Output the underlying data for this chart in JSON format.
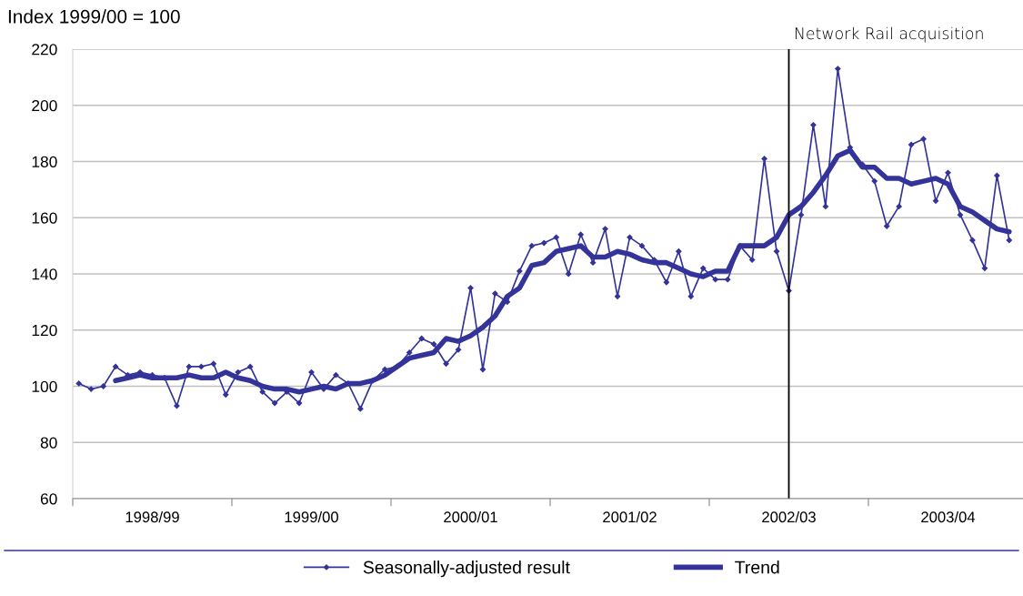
{
  "chart_data": {
    "type": "line",
    "ylabel": "Index 1999/00 = 100",
    "categories": [
      null,
      null,
      null,
      null,
      null,
      null,
      "1998/99",
      null,
      null,
      null,
      null,
      null,
      null,
      null,
      null,
      null,
      null,
      null,
      null,
      "1999/00",
      null,
      null,
      null,
      null,
      null,
      null,
      null,
      null,
      null,
      null,
      null,
      null,
      "2000/01",
      null,
      null,
      null,
      null,
      null,
      null,
      null,
      null,
      null,
      null,
      null,
      null,
      "2001/02",
      null,
      null,
      null,
      null,
      null,
      null,
      null,
      null,
      null,
      null,
      null,
      null,
      "2002/03",
      null,
      null,
      null,
      null,
      null,
      null,
      null,
      null,
      null,
      null,
      null,
      null,
      "2003/04",
      null,
      null,
      null,
      null,
      null,
      null
    ],
    "series": [
      {
        "name": "Seasonally-adjusted result",
        "color": "#333399",
        "marker": "diamond",
        "values": [
          101,
          99,
          100,
          107,
          104,
          105,
          104,
          103,
          93,
          107,
          107,
          108,
          97,
          105,
          107,
          98,
          94,
          98,
          94,
          105,
          99,
          104,
          101,
          92,
          102,
          106,
          107,
          112,
          117,
          115,
          108,
          113,
          135,
          106,
          133,
          130,
          141,
          150,
          151,
          153,
          140,
          154,
          144,
          156,
          132,
          153,
          150,
          145,
          137,
          148,
          132,
          142,
          138,
          138,
          150,
          145,
          181,
          148,
          134,
          161,
          193,
          164,
          213,
          185,
          179,
          173,
          157,
          164,
          186,
          188,
          166,
          176,
          161,
          152,
          142,
          175,
          152,
          null
        ]
      },
      {
        "name": "Trend",
        "color": "#333399",
        "marker": "none",
        "values": [
          null,
          null,
          null,
          102,
          103,
          104,
          103,
          103,
          103,
          104,
          103,
          103,
          105,
          103,
          102,
          100,
          99,
          99,
          98,
          99,
          100,
          99,
          101,
          101,
          102,
          104,
          107,
          110,
          111,
          112,
          117,
          116,
          118,
          121,
          125,
          132,
          135,
          143,
          144,
          148,
          149,
          150,
          146,
          146,
          148,
          147,
          145,
          144,
          144,
          142,
          140,
          139,
          141,
          141,
          150,
          150,
          150,
          153,
          161,
          164,
          169,
          175,
          182,
          184,
          178,
          178,
          174,
          174,
          172,
          173,
          174,
          172,
          164,
          162,
          159,
          156,
          155,
          null
        ]
      }
    ],
    "ylim": [
      60,
      220
    ],
    "yticks": [
      60,
      80,
      100,
      120,
      140,
      160,
      180,
      200,
      220
    ],
    "ref_lines": [
      {
        "axis": "x",
        "value": "2002/03",
        "label": "Network Rail acquisition",
        "color": "#000000"
      }
    ],
    "grid": "y",
    "legend": "bottom"
  }
}
